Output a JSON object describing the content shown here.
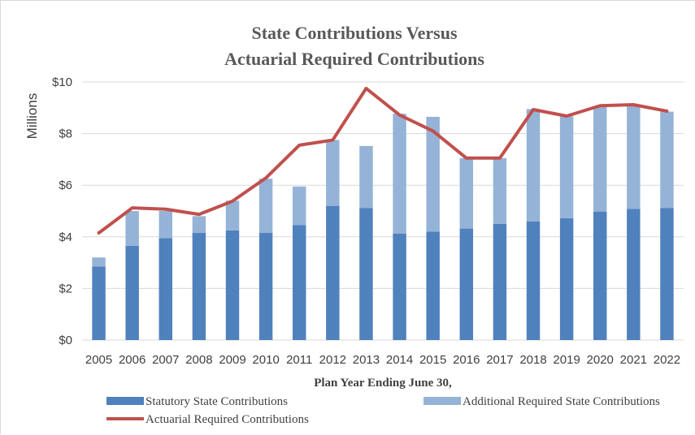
{
  "chart_data": {
    "type": "bar",
    "stacked": true,
    "title": [
      "State Contributions  Versus",
      "Actuarial Required Contributions"
    ],
    "xlabel": "Plan Year Ending June 30,",
    "ylabel": "Millions",
    "ylim": [
      0,
      10
    ],
    "yticks": [
      0,
      2,
      4,
      6,
      8,
      10
    ],
    "ytick_labels": [
      "$0",
      "$2",
      "$4",
      "$6",
      "$8",
      "$10"
    ],
    "grid": true,
    "legend_position": "bottom",
    "categories": [
      "2005",
      "2006",
      "2007",
      "2008",
      "2009",
      "2010",
      "2011",
      "2012",
      "2013",
      "2014",
      "2015",
      "2016",
      "2017",
      "2018",
      "2019",
      "2020",
      "2021",
      "2022"
    ],
    "series": [
      {
        "name": "Statutory State Contributions",
        "type": "bar",
        "color": "#4f81bd",
        "values": [
          2.85,
          3.65,
          3.95,
          4.15,
          4.25,
          4.15,
          4.45,
          5.2,
          5.12,
          4.12,
          4.2,
          4.32,
          4.5,
          4.6,
          4.72,
          4.98,
          5.08,
          5.12
        ]
      },
      {
        "name": "Additional Required State Contributions",
        "type": "bar",
        "color": "#95b3d7",
        "values": [
          0.35,
          1.35,
          1.05,
          0.65,
          1.15,
          2.1,
          1.5,
          2.55,
          2.4,
          4.65,
          4.45,
          2.73,
          2.55,
          4.35,
          3.95,
          4.07,
          4.02,
          3.73
        ]
      },
      {
        "name": "Actuarial Required Contributions",
        "type": "line",
        "color": "#c0504d",
        "values": [
          4.15,
          5.12,
          5.07,
          4.87,
          5.38,
          6.28,
          7.55,
          7.75,
          9.75,
          8.72,
          8.1,
          7.05,
          7.05,
          8.93,
          8.68,
          9.08,
          9.12,
          8.87
        ]
      }
    ]
  }
}
